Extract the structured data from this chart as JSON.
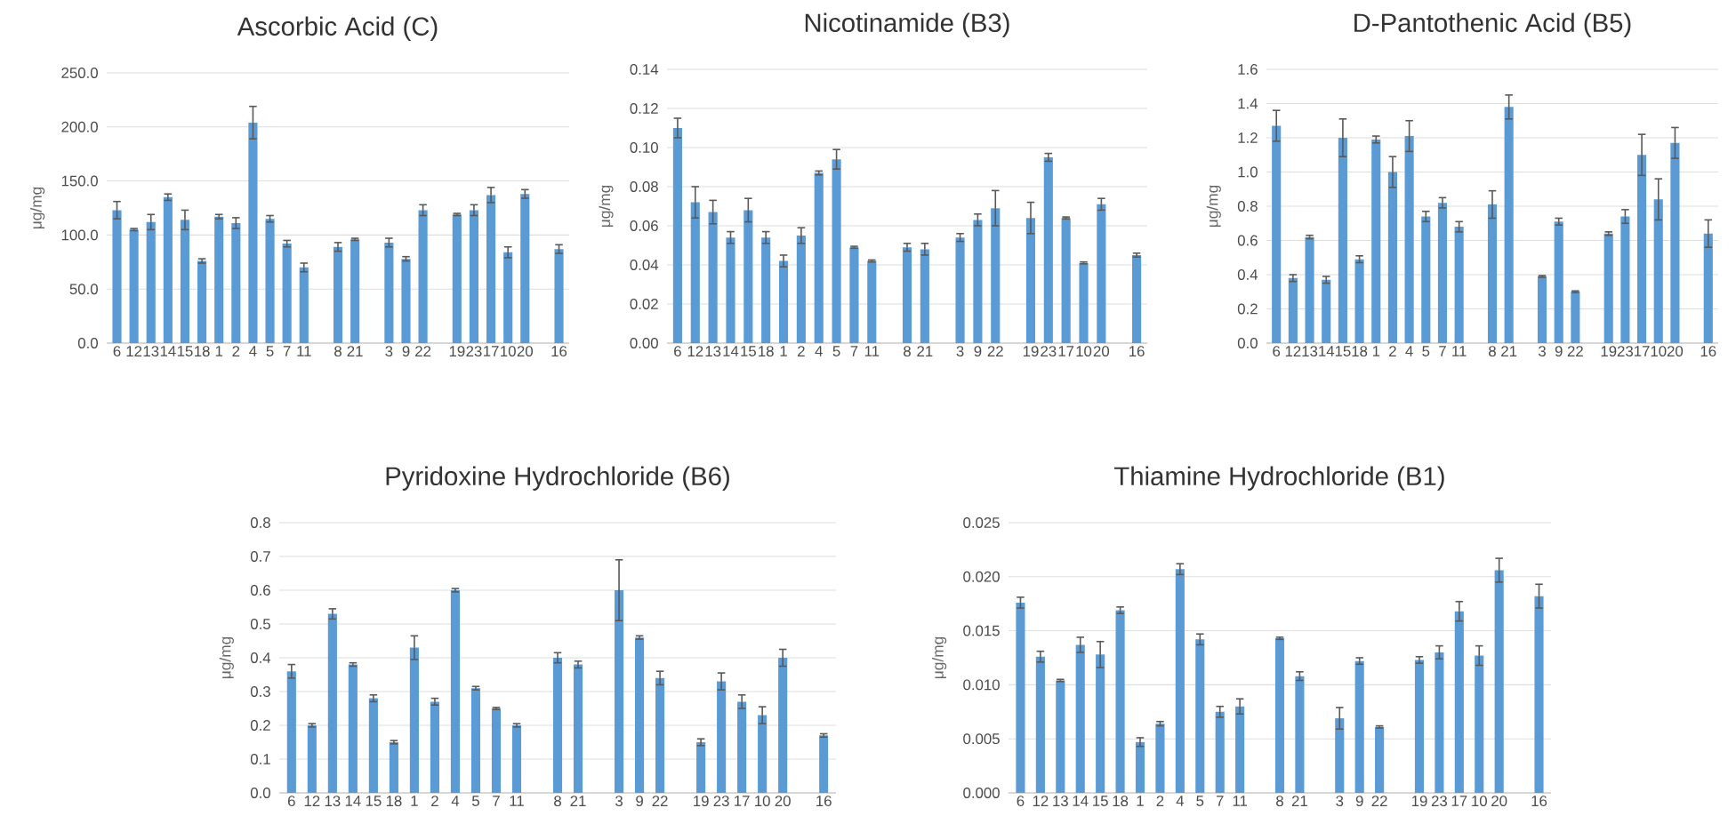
{
  "chart_data": [
    {
      "type": "bar",
      "title": "Ascorbic Acid (C)",
      "ylabel": "μg/mg",
      "color": "#5b9bd5",
      "grid": "y",
      "categories": [
        "6",
        "12",
        "13",
        "14",
        "15",
        "18",
        "1",
        "2",
        "4",
        "5",
        "7",
        "11",
        null,
        "8",
        "21",
        null,
        "3",
        "9",
        "22",
        null,
        "19",
        "23",
        "17",
        "10",
        "20",
        null,
        "16"
      ],
      "values": [
        123,
        105,
        112,
        135,
        114,
        76,
        117,
        111,
        204,
        115,
        92,
        70,
        null,
        89,
        96,
        null,
        93,
        78,
        123,
        null,
        119,
        123,
        137,
        84,
        138,
        null,
        87
      ],
      "errors": [
        8,
        1,
        7,
        3,
        9,
        2,
        2,
        5,
        15,
        3,
        3,
        4,
        null,
        4,
        1,
        null,
        4,
        2,
        5,
        null,
        1,
        5,
        7,
        5,
        4,
        null,
        4
      ],
      "ylim": [
        0,
        250
      ],
      "yticks": [
        {
          "value": 0,
          "label": "0.0"
        },
        {
          "value": 50,
          "label": "50.0"
        },
        {
          "value": 100,
          "label": "100.0"
        },
        {
          "value": 150,
          "label": "150.0"
        },
        {
          "value": 200,
          "label": "200.0"
        },
        {
          "value": 250,
          "label": "250.0"
        }
      ]
    },
    {
      "type": "bar",
      "title": "Nicotinamide (B3)",
      "ylabel": "μg/mg",
      "color": "#5b9bd5",
      "grid": "y",
      "categories": [
        "6",
        "12",
        "13",
        "14",
        "15",
        "18",
        "1",
        "2",
        "4",
        "5",
        "7",
        "11",
        null,
        "8",
        "21",
        null,
        "3",
        "9",
        "22",
        null,
        "19",
        "23",
        "17",
        "10",
        "20",
        null,
        "16"
      ],
      "values": [
        0.11,
        0.072,
        0.067,
        0.054,
        0.068,
        0.054,
        0.042,
        0.055,
        0.087,
        0.094,
        0.049,
        0.042,
        null,
        0.049,
        0.048,
        null,
        0.054,
        0.063,
        0.069,
        null,
        0.064,
        0.095,
        0.064,
        0.041,
        0.071,
        null,
        0.045
      ],
      "errors": [
        0.005,
        0.008,
        0.006,
        0.003,
        0.006,
        0.003,
        0.003,
        0.004,
        0.001,
        0.005,
        0.0005,
        0.0005,
        null,
        0.002,
        0.003,
        null,
        0.002,
        0.003,
        0.009,
        null,
        0.008,
        0.002,
        0.0005,
        0.0005,
        0.003,
        null,
        0.001
      ],
      "ylim": [
        0,
        0.14
      ],
      "yticks": [
        {
          "value": 0,
          "label": "0.00"
        },
        {
          "value": 0.02,
          "label": "0.02"
        },
        {
          "value": 0.04,
          "label": "0.04"
        },
        {
          "value": 0.06,
          "label": "0.06"
        },
        {
          "value": 0.08,
          "label": "0.08"
        },
        {
          "value": 0.1,
          "label": "0.10"
        },
        {
          "value": 0.12,
          "label": "0.12"
        },
        {
          "value": 0.14,
          "label": "0.14"
        }
      ]
    },
    {
      "type": "bar",
      "title": "D-Pantothenic Acid (B5)",
      "ylabel": "μg/mg",
      "color": "#5b9bd5",
      "grid": "y",
      "categories": [
        "6",
        "12",
        "13",
        "14",
        "15",
        "18",
        "1",
        "2",
        "4",
        "5",
        "7",
        "11",
        null,
        "8",
        "21",
        null,
        "3",
        "9",
        "22",
        null,
        "19",
        "23",
        "17",
        "10",
        "20",
        null,
        "16"
      ],
      "values": [
        1.27,
        0.38,
        0.62,
        0.37,
        1.2,
        0.49,
        1.19,
        1.0,
        1.21,
        0.74,
        0.82,
        0.68,
        null,
        0.81,
        1.38,
        null,
        0.39,
        0.71,
        0.3,
        null,
        0.64,
        0.74,
        1.1,
        0.84,
        1.17,
        null,
        0.64
      ],
      "errors": [
        0.09,
        0.02,
        0.01,
        0.02,
        0.11,
        0.02,
        0.02,
        0.09,
        0.09,
        0.03,
        0.03,
        0.03,
        null,
        0.08,
        0.07,
        null,
        0.005,
        0.02,
        0.005,
        null,
        0.01,
        0.04,
        0.12,
        0.12,
        0.09,
        null,
        0.08
      ],
      "ylim": [
        0,
        1.6
      ],
      "yticks": [
        {
          "value": 0,
          "label": "0.0"
        },
        {
          "value": 0.2,
          "label": "0.2"
        },
        {
          "value": 0.4,
          "label": "0.4"
        },
        {
          "value": 0.6,
          "label": "0.6"
        },
        {
          "value": 0.8,
          "label": "0.8"
        },
        {
          "value": 1.0,
          "label": "1.0"
        },
        {
          "value": 1.2,
          "label": "1.2"
        },
        {
          "value": 1.4,
          "label": "1.4"
        },
        {
          "value": 1.6,
          "label": "1.6"
        }
      ]
    },
    {
      "type": "bar",
      "title": "Pyridoxine Hydrochloride (B6)",
      "ylabel": "μg/mg",
      "color": "#5b9bd5",
      "grid": "y",
      "categories": [
        "6",
        "12",
        "13",
        "14",
        "15",
        "18",
        "1",
        "2",
        "4",
        "5",
        "7",
        "11",
        null,
        "8",
        "21",
        null,
        "3",
        "9",
        "22",
        null,
        "19",
        "23",
        "17",
        "10",
        "20",
        null,
        "16"
      ],
      "values": [
        0.36,
        0.2,
        0.53,
        0.38,
        0.28,
        0.15,
        0.43,
        0.27,
        0.6,
        0.31,
        0.25,
        0.2,
        null,
        0.4,
        0.38,
        null,
        0.6,
        0.46,
        0.34,
        null,
        0.15,
        0.33,
        0.27,
        0.23,
        0.4,
        null,
        0.17
      ],
      "errors": [
        0.02,
        0.005,
        0.015,
        0.005,
        0.01,
        0.005,
        0.035,
        0.01,
        0.005,
        0.005,
        0.003,
        0.005,
        null,
        0.015,
        0.01,
        null,
        0.09,
        0.005,
        0.02,
        null,
        0.01,
        0.025,
        0.02,
        0.025,
        0.025,
        null,
        0.005
      ],
      "ylim": [
        0,
        0.8
      ],
      "yticks": [
        {
          "value": 0,
          "label": "0.0"
        },
        {
          "value": 0.1,
          "label": "0.1"
        },
        {
          "value": 0.2,
          "label": "0.2"
        },
        {
          "value": 0.3,
          "label": "0.3"
        },
        {
          "value": 0.4,
          "label": "0.4"
        },
        {
          "value": 0.5,
          "label": "0.5"
        },
        {
          "value": 0.6,
          "label": "0.6"
        },
        {
          "value": 0.7,
          "label": "0.7"
        },
        {
          "value": 0.8,
          "label": "0.8"
        }
      ]
    },
    {
      "type": "bar",
      "title": "Thiamine Hydrochloride (B1)",
      "ylabel": "μg/mg",
      "color": "#5b9bd5",
      "grid": "y",
      "categories": [
        "6",
        "12",
        "13",
        "14",
        "15",
        "18",
        "1",
        "2",
        "4",
        "5",
        "7",
        "11",
        null,
        "8",
        "21",
        null,
        "3",
        "9",
        "22",
        null,
        "19",
        "23",
        "17",
        "10",
        "20",
        null,
        "16"
      ],
      "values": [
        0.0176,
        0.0126,
        0.0104,
        0.0137,
        0.0128,
        0.0169,
        0.0047,
        0.0064,
        0.0207,
        0.0142,
        0.0075,
        0.008,
        null,
        0.0143,
        0.0108,
        null,
        0.0069,
        0.0122,
        0.0061,
        null,
        0.0123,
        0.013,
        0.0168,
        0.0127,
        0.0206,
        null,
        0.0182
      ],
      "errors": [
        0.0005,
        0.0005,
        0.0001,
        0.0007,
        0.0012,
        0.0003,
        0.0004,
        0.0002,
        0.0005,
        0.0005,
        0.0005,
        0.0007,
        null,
        0.0001,
        0.0004,
        null,
        0.001,
        0.0003,
        0.0001,
        null,
        0.0003,
        0.0006,
        0.0009,
        0.0009,
        0.0011,
        null,
        0.0011
      ],
      "ylim": [
        0,
        0.025
      ],
      "yticks": [
        {
          "value": 0,
          "label": "0.000"
        },
        {
          "value": 0.005,
          "label": "0.005"
        },
        {
          "value": 0.01,
          "label": "0.010"
        },
        {
          "value": 0.015,
          "label": "0.015"
        },
        {
          "value": 0.02,
          "label": "0.020"
        },
        {
          "value": 0.025,
          "label": "0.025"
        }
      ]
    }
  ]
}
